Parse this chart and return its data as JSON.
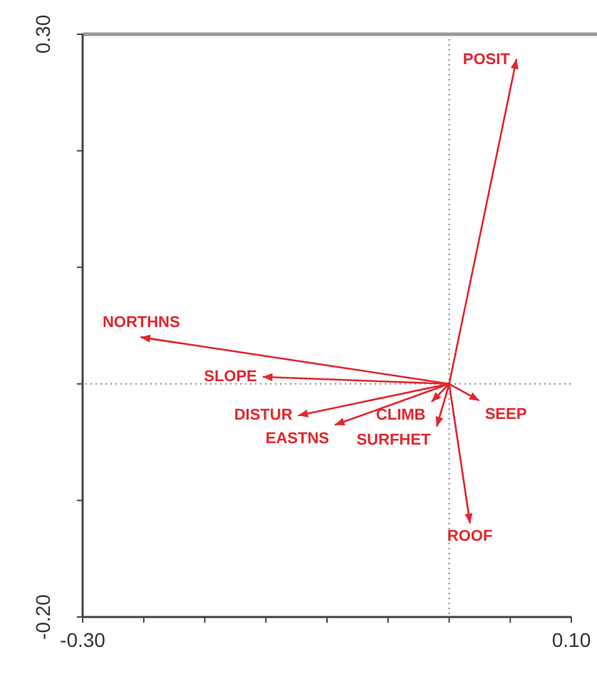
{
  "chart_data": {
    "type": "line",
    "xlim": [
      -0.3,
      0.1
    ],
    "ylim": [
      -0.2,
      0.3
    ],
    "xticks": [
      {
        "value": -0.3,
        "label": "-0.30"
      },
      {
        "value": -0.25,
        "label": null
      },
      {
        "value": -0.2,
        "label": null
      },
      {
        "value": -0.15,
        "label": null
      },
      {
        "value": -0.1,
        "label": null
      },
      {
        "value": -0.05,
        "label": null
      },
      {
        "value": 0,
        "label": null
      },
      {
        "value": 0.05,
        "label": null
      },
      {
        "value": 0.1,
        "label": "0.10"
      }
    ],
    "yticks": [
      {
        "value": -0.2,
        "label": "-0.20"
      },
      {
        "value": -0.1,
        "label": null
      },
      {
        "value": 0,
        "label": null
      },
      {
        "value": 0.1,
        "label": null
      },
      {
        "value": 0.2,
        "label": null
      },
      {
        "value": 0.3,
        "label": "0.30"
      }
    ],
    "ref_lines": [
      {
        "axis": "x",
        "value": 0,
        "color": "#888888",
        "line_style": "dotted"
      },
      {
        "axis": "y",
        "value": 0,
        "color": "#888888",
        "line_style": "dotted"
      }
    ],
    "series": [
      {
        "name": "POSIT",
        "color": "#e3262e",
        "x": [
          0,
          0.055
        ],
        "values": [
          0,
          0.278
        ]
      },
      {
        "name": "NORTHNS",
        "color": "#e3262e",
        "x": [
          0,
          -0.252
        ],
        "values": [
          0,
          0.04
        ]
      },
      {
        "name": "SLOPE",
        "color": "#e3262e",
        "x": [
          0,
          -0.152
        ],
        "values": [
          0,
          0.006
        ]
      },
      {
        "name": "DISTUR",
        "color": "#e3262e",
        "x": [
          0,
          -0.123
        ],
        "values": [
          0,
          -0.027
        ]
      },
      {
        "name": "EASTNS",
        "color": "#e3262e",
        "x": [
          0,
          -0.093
        ],
        "values": [
          0,
          -0.035
        ]
      },
      {
        "name": "CLIMB",
        "color": "#e3262e",
        "x": [
          0,
          -0.014
        ],
        "values": [
          0,
          -0.015
        ]
      },
      {
        "name": "SURFHET",
        "color": "#e3262e",
        "x": [
          0,
          -0.01
        ],
        "values": [
          0,
          -0.036
        ]
      },
      {
        "name": "SEEP",
        "color": "#e3262e",
        "x": [
          0,
          0.024
        ],
        "values": [
          0,
          -0.014
        ]
      },
      {
        "name": "ROOF",
        "color": "#e3262e",
        "x": [
          0,
          0.017
        ],
        "values": [
          0,
          -0.119
        ]
      }
    ]
  }
}
